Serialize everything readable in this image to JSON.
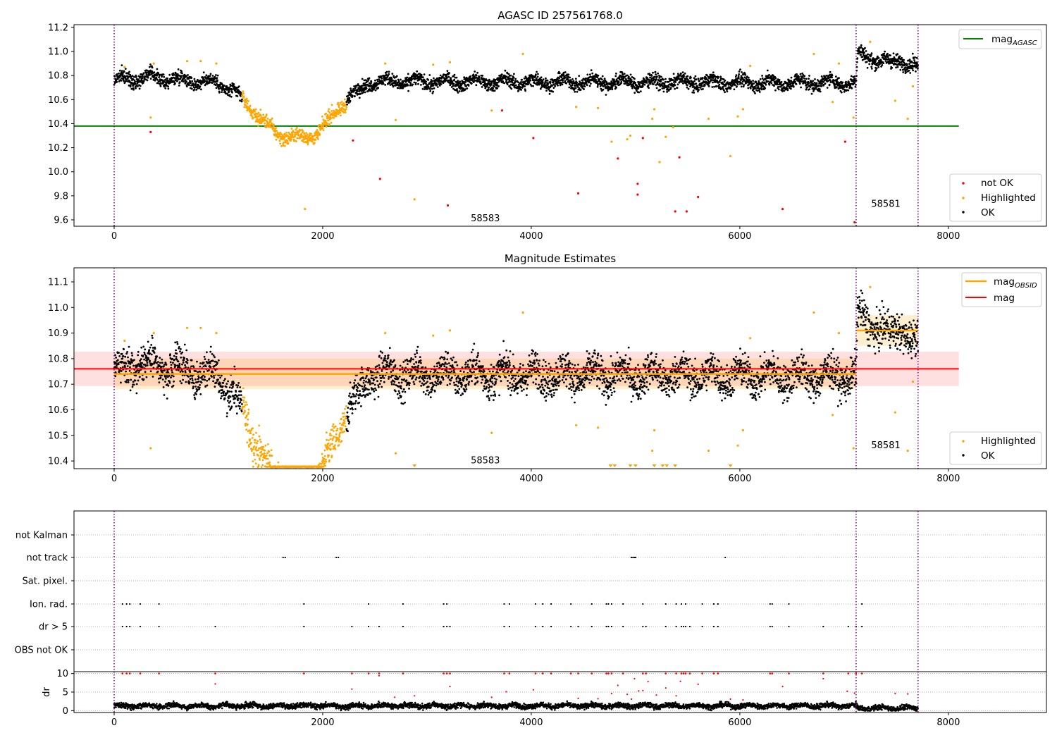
{
  "chart_data": [
    {
      "type": "scatter",
      "title": "AGASC ID 257561768.0",
      "xlim": [
        -385,
        8940
      ],
      "ylim": [
        9.547,
        11.223
      ],
      "xticks": [
        0,
        2000,
        4000,
        6000,
        8000
      ],
      "yticks": [
        9.6,
        9.8,
        10.0,
        10.2,
        10.4,
        10.6,
        10.8,
        11.0,
        11.2
      ],
      "mag_agasc": 10.38,
      "mag_agasc_range": [
        -385,
        8100
      ],
      "obsid_boundaries": [
        0,
        7115,
        7709
      ],
      "annotations": [
        {
          "text": "58583",
          "x": 3420,
          "y": 9.6
        },
        {
          "text": "58581",
          "x": 7260,
          "y": 9.72
        }
      ],
      "trend": [
        [
          0,
          10.76
        ],
        [
          300,
          10.79
        ],
        [
          700,
          10.76
        ],
        [
          1000,
          10.74
        ],
        [
          1150,
          10.67
        ],
        [
          1250,
          10.58
        ],
        [
          1350,
          10.5
        ],
        [
          1450,
          10.4
        ],
        [
          1550,
          10.32
        ],
        [
          1700,
          10.29
        ],
        [
          1800,
          10.28
        ],
        [
          1950,
          10.32
        ],
        [
          2050,
          10.42
        ],
        [
          2150,
          10.52
        ],
        [
          2250,
          10.62
        ],
        [
          2350,
          10.67
        ],
        [
          2450,
          10.75
        ],
        [
          7115,
          10.74
        ],
        [
          7130,
          10.98
        ],
        [
          7250,
          10.95
        ],
        [
          7450,
          10.9
        ],
        [
          7550,
          10.94
        ],
        [
          7650,
          10.88
        ],
        [
          7709,
          10.87
        ]
      ],
      "not_ok": [
        [
          350,
          10.33
        ],
        [
          2290,
          10.26
        ],
        [
          2550,
          9.94
        ],
        [
          3200,
          9.72
        ],
        [
          3720,
          10.51
        ],
        [
          4020,
          10.28
        ],
        [
          4450,
          9.82
        ],
        [
          4830,
          10.11
        ],
        [
          5020,
          9.9
        ],
        [
          5020,
          9.81
        ],
        [
          5070,
          10.28
        ],
        [
          5420,
          10.12
        ],
        [
          5380,
          9.67
        ],
        [
          5490,
          9.67
        ],
        [
          5600,
          9.79
        ],
        [
          6410,
          9.69
        ],
        [
          7010,
          10.25
        ],
        [
          7100,
          9.58
        ]
      ],
      "highlighted_outliers": [
        [
          100,
          10.87
        ],
        [
          350,
          10.45
        ],
        [
          380,
          10.9
        ],
        [
          700,
          10.92
        ],
        [
          830,
          10.92
        ],
        [
          980,
          10.9
        ],
        [
          1830,
          9.69
        ],
        [
          2600,
          10.9
        ],
        [
          2700,
          10.43
        ],
        [
          2880,
          9.77
        ],
        [
          3060,
          10.89
        ],
        [
          3220,
          10.91
        ],
        [
          3620,
          10.51
        ],
        [
          3920,
          10.98
        ],
        [
          4430,
          10.54
        ],
        [
          4640,
          10.53
        ],
        [
          4770,
          10.25
        ],
        [
          4920,
          10.27
        ],
        [
          4950,
          10.3
        ],
        [
          5160,
          10.44
        ],
        [
          5180,
          10.52
        ],
        [
          5230,
          10.08
        ],
        [
          5290,
          10.29
        ],
        [
          5360,
          10.37
        ],
        [
          5700,
          10.44
        ],
        [
          5910,
          10.13
        ],
        [
          5980,
          10.46
        ],
        [
          6030,
          10.52
        ],
        [
          6100,
          10.88
        ],
        [
          6710,
          10.98
        ],
        [
          6890,
          10.58
        ],
        [
          6950,
          10.9
        ],
        [
          7090,
          10.45
        ],
        [
          7250,
          11.08
        ],
        [
          7490,
          10.59
        ],
        [
          7610,
          10.44
        ],
        [
          7660,
          10.71
        ]
      ],
      "legend_line": {
        "label": "mag",
        "sub": "AGASC",
        "color": "#008000"
      },
      "legend_points": [
        {
          "label": "not OK",
          "color": "#ff0000"
        },
        {
          "label": "Highlighted",
          "color": "#ffa500"
        },
        {
          "label": "OK",
          "color": "#000000"
        }
      ]
    },
    {
      "type": "scatter",
      "title": "Magnitude Estimates",
      "xlim": [
        -385,
        8940
      ],
      "ylim": [
        10.37,
        11.155
      ],
      "xticks": [
        0,
        2000,
        4000,
        6000,
        8000
      ],
      "yticks": [
        10.4,
        10.5,
        10.6,
        10.7,
        10.8,
        10.9,
        11.0,
        11.1
      ],
      "mag": 10.76,
      "mag_band": [
        10.693,
        10.827
      ],
      "mag_range": [
        -385,
        8100
      ],
      "mag_obsid": [
        {
          "x": [
            0,
            7115
          ],
          "y": 10.74,
          "band": [
            10.68,
            10.8
          ]
        },
        {
          "x": [
            7115,
            7709
          ],
          "y": 10.91,
          "band": [
            10.85,
            10.97
          ]
        }
      ],
      "annotations": [
        {
          "text": "58583",
          "x": 3420,
          "y": 10.39
        },
        {
          "text": "58581",
          "x": 7260,
          "y": 10.45
        }
      ],
      "clipped_markers_x": [
        2880,
        4760,
        4800,
        4950,
        5000,
        5180,
        5260,
        5300,
        5380,
        5910
      ],
      "legend_line": [
        {
          "label": "mag",
          "sub": "OBSID",
          "color": "#ffa500"
        },
        {
          "label": "mag",
          "sub": "",
          "color": "#ff0000"
        }
      ],
      "legend_points": [
        {
          "label": "Highlighted",
          "color": "#ffa500"
        },
        {
          "label": "OK",
          "color": "#000000"
        }
      ]
    },
    {
      "type": "scatter",
      "categories": [
        "not Kalman",
        "not track",
        "Sat. pixel.",
        "Ion. rad.",
        "dr > 5",
        "OBS not OK"
      ],
      "flags": {
        "not Kalman": [],
        "not track": [
          1620,
          1640,
          2130,
          2150,
          4960,
          4975,
          4990,
          5000,
          5860
        ],
        "Sat. pixel.": [],
        "Ion. rad.": [
          80,
          120,
          150,
          250,
          430,
          1820,
          2440,
          2770,
          3160,
          3190,
          3740,
          3790,
          4040,
          4110,
          4190,
          4380,
          4580,
          4720,
          4740,
          4770,
          4880,
          5070,
          5290,
          5390,
          5440,
          5480,
          5640,
          5750,
          5790,
          6290,
          6310,
          6470,
          7170
        ],
        "dr > 5": [
          80,
          120,
          150,
          250,
          430,
          970,
          1820,
          2280,
          2440,
          2540,
          2770,
          3160,
          3190,
          3220,
          3740,
          3790,
          4040,
          4110,
          4190,
          4380,
          4450,
          4580,
          4720,
          4740,
          4770,
          4880,
          5070,
          5100,
          5290,
          5390,
          5440,
          5460,
          5480,
          5520,
          5640,
          5750,
          5790,
          6290,
          6310,
          6470,
          6800,
          7040,
          7115,
          7170
        ],
        "OBS not OK": []
      },
      "xlim": [
        -385,
        8940
      ],
      "xticks": [
        0,
        2000,
        4000,
        6000,
        8000
      ],
      "dr_ylabel": "dr",
      "dr_yticks": [
        0,
        5,
        10
      ],
      "dr_ylim": [
        -0.5,
        10.5
      ],
      "dr_baseline": 1.3,
      "dr_red": [
        [
          970,
          7.2
        ],
        [
          2280,
          5.8
        ],
        [
          2540,
          9.4
        ],
        [
          2690,
          3.6
        ],
        [
          2880,
          4.0
        ],
        [
          3220,
          6.5
        ],
        [
          3620,
          3.6
        ],
        [
          3760,
          5.1
        ],
        [
          4020,
          5.6
        ],
        [
          4450,
          3.3
        ],
        [
          4640,
          3.2
        ],
        [
          4770,
          4.6
        ],
        [
          4830,
          6.8
        ],
        [
          4920,
          4.4
        ],
        [
          4960,
          3.1
        ],
        [
          4990,
          8.6
        ],
        [
          5030,
          5.3
        ],
        [
          5070,
          5.4
        ],
        [
          5120,
          7.8
        ],
        [
          5200,
          4.2
        ],
        [
          5290,
          6.1
        ],
        [
          5390,
          4.0
        ],
        [
          5430,
          7.9
        ],
        [
          5600,
          7.1
        ],
        [
          5910,
          3.1
        ],
        [
          6030,
          2.9
        ],
        [
          6410,
          6.5
        ],
        [
          6800,
          8.6
        ],
        [
          7030,
          5.2
        ],
        [
          7100,
          4.7
        ],
        [
          7490,
          4.6
        ],
        [
          7610,
          4.5
        ]
      ]
    }
  ]
}
